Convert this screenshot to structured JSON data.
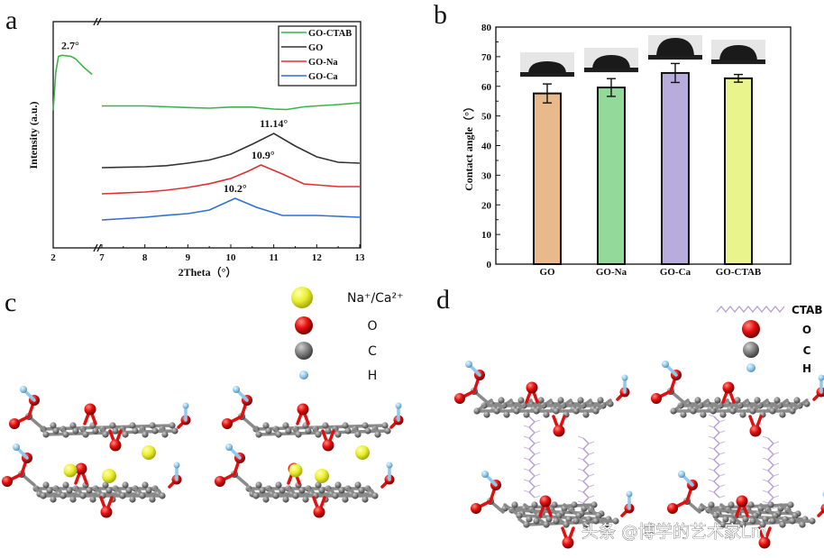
{
  "panels": {
    "a": "a",
    "b": "b",
    "c": "c",
    "d": "d"
  },
  "chart_data": [
    {
      "type": "line",
      "xlabel": "2Theta（°）",
      "ylabel": "Intensity (a.u.)",
      "x_ticks": [
        2,
        7,
        8,
        9,
        10,
        11,
        12,
        13
      ],
      "axis_break": [
        2,
        7
      ],
      "y_scale": "arbitrary units, no tick labels",
      "legend": "top-right",
      "series": [
        {
          "name": "GO-CTAB",
          "color": "#3cb44b",
          "x": [
            2.0,
            2.3,
            2.6,
            3.0,
            4.0,
            4.5,
            5.5,
            6.4,
            7,
            8,
            9,
            9.5,
            10,
            10.5,
            11,
            11.3,
            11.7,
            12,
            12.5,
            13
          ],
          "y": [
            61,
            78,
            85,
            85.5,
            85,
            84,
            80,
            77,
            63,
            63,
            62.3,
            62,
            62.5,
            62.5,
            61.6,
            61.4,
            62.6,
            63,
            63.6,
            64.4
          ]
        },
        {
          "name": "GO",
          "color": "#333333",
          "x": [
            7,
            8,
            8.5,
            9,
            9.5,
            10,
            10.5,
            11,
            11.5,
            12,
            12.5,
            13
          ],
          "y": [
            35.6,
            36,
            36.5,
            37.6,
            39,
            41.6,
            46,
            50.8,
            45.2,
            40.4,
            38,
            37.6
          ]
        },
        {
          "name": "GO-Na",
          "color": "#e03030",
          "x": [
            7,
            8,
            8.5,
            9,
            9.5,
            10,
            10.4,
            10.7,
            11.2,
            11.7,
            12.5,
            13
          ],
          "y": [
            24,
            24.8,
            25.6,
            26.8,
            28.5,
            30.8,
            34,
            36.8,
            32.8,
            28.4,
            27.2,
            27.2
          ]
        },
        {
          "name": "GO-Ca",
          "color": "#2f6fd6",
          "x": [
            7,
            8,
            8.5,
            9,
            9.5,
            10.1,
            10.6,
            11.2,
            12,
            12.5,
            13
          ],
          "y": [
            12.4,
            13.6,
            14.5,
            15.2,
            16.8,
            22,
            18,
            14.4,
            14.4,
            14,
            13.6
          ]
        }
      ],
      "annotations": [
        {
          "text": "2.7°",
          "x": 2.7,
          "y": 85.5
        },
        {
          "text": "11.14°",
          "x": 11.0,
          "y": 50.8
        },
        {
          "text": "10.9°",
          "x": 10.75,
          "y": 36.8
        },
        {
          "text": "10.2°",
          "x": 10.1,
          "y": 22
        }
      ]
    },
    {
      "type": "bar",
      "categories": [
        "GO",
        "GO-Na",
        "GO-Ca",
        "GO-CTAB"
      ],
      "values": [
        57.6,
        59.6,
        64.5,
        62.7
      ],
      "errors": [
        3.2,
        3.0,
        3.2,
        1.3
      ],
      "colors": [
        "#e8b98a",
        "#93d99a",
        "#b7acdc",
        "#eaf48c"
      ],
      "xlabel": "",
      "ylabel": "Contact angle（°）",
      "ylim": [
        0,
        80
      ],
      "y_ticks": [
        0,
        10,
        20,
        30,
        40,
        50,
        60,
        70,
        80
      ],
      "insets": "water droplet photographs above each bar"
    }
  ],
  "diagram_c": {
    "legend": [
      {
        "label": "Na⁺/Ca²⁺",
        "atom": "Na/Ca",
        "color": "#e9ef2c"
      },
      {
        "label": "O",
        "atom": "O",
        "color": "#e01010"
      },
      {
        "label": "C",
        "atom": "C",
        "color": "#777777"
      },
      {
        "label": "H",
        "atom": "H",
        "color": "#8fc8ec"
      }
    ]
  },
  "diagram_d": {
    "legend": [
      {
        "label": "CTAB",
        "atom": "CTAB",
        "color": "#b79bd6"
      },
      {
        "label": "O",
        "atom": "O",
        "color": "#e01010"
      },
      {
        "label": "C",
        "atom": "C",
        "color": "#777777"
      },
      {
        "label": "H",
        "atom": "H",
        "color": "#8fc8ec"
      }
    ]
  },
  "watermark": "头条 @博学的艺术家Lm"
}
